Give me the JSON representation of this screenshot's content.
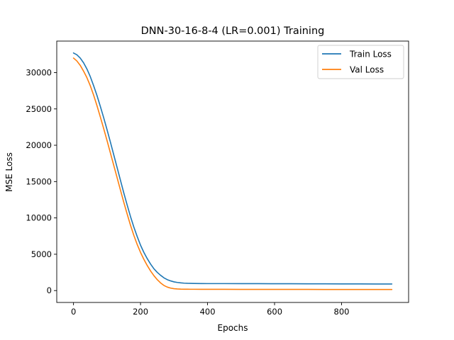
{
  "chart_data": {
    "type": "line",
    "title": "DNN-30-16-8-4 (LR=0.001) Training",
    "xlabel": "Epochs",
    "ylabel": "MSE Loss",
    "xlim": [
      -50,
      1000
    ],
    "ylim": [
      -1635,
      34335
    ],
    "xticks": [
      0,
      200,
      400,
      600,
      800
    ],
    "xtick_labels": [
      "0",
      "200",
      "400",
      "600",
      "800"
    ],
    "yticks": [
      0,
      5000,
      10000,
      15000,
      20000,
      25000,
      30000
    ],
    "ytick_labels": [
      "0",
      "5000",
      "10000",
      "15000",
      "20000",
      "25000",
      "30000"
    ],
    "grid": false,
    "legend_position": "top-right",
    "series": [
      {
        "name": "Train Loss",
        "color": "#1f77b4",
        "x": [
          0,
          10,
          20,
          30,
          40,
          50,
          60,
          70,
          80,
          90,
          100,
          110,
          120,
          130,
          140,
          150,
          160,
          170,
          180,
          190,
          200,
          210,
          220,
          230,
          240,
          250,
          260,
          270,
          280,
          290,
          300,
          310,
          320,
          330,
          340,
          350,
          360,
          380,
          400,
          450,
          500,
          550,
          600,
          650,
          700,
          750,
          800,
          850,
          900,
          950
        ],
        "y": [
          32700,
          32450,
          32000,
          31350,
          30500,
          29450,
          28200,
          26850,
          25350,
          23800,
          22150,
          20450,
          18700,
          16950,
          15200,
          13450,
          11800,
          10200,
          8750,
          7450,
          6250,
          5250,
          4400,
          3650,
          3000,
          2500,
          2100,
          1750,
          1500,
          1330,
          1200,
          1120,
          1060,
          1020,
          1000,
          990,
          980,
          970,
          960,
          960,
          950,
          950,
          940,
          940,
          930,
          930,
          920,
          920,
          910,
          910
        ]
      },
      {
        "name": "Val Loss",
        "color": "#ff7f0e",
        "x": [
          0,
          10,
          20,
          30,
          40,
          50,
          60,
          70,
          80,
          90,
          100,
          110,
          120,
          130,
          140,
          150,
          160,
          170,
          180,
          190,
          200,
          210,
          220,
          230,
          240,
          250,
          260,
          270,
          280,
          290,
          300,
          310,
          320,
          330,
          340,
          350,
          360,
          380,
          400,
          450,
          500,
          550,
          600,
          650,
          700,
          750,
          800,
          850,
          900,
          950
        ],
        "y": [
          32000,
          31600,
          31000,
          30200,
          29300,
          28200,
          26900,
          25450,
          23900,
          22300,
          20650,
          18950,
          17250,
          15550,
          13850,
          12150,
          10550,
          9000,
          7600,
          6350,
          5250,
          4300,
          3450,
          2700,
          2050,
          1500,
          1050,
          700,
          480,
          340,
          260,
          220,
          200,
          190,
          185,
          180,
          180,
          175,
          170,
          170,
          165,
          165,
          160,
          160,
          160,
          155,
          155,
          150,
          150,
          150
        ]
      }
    ]
  }
}
